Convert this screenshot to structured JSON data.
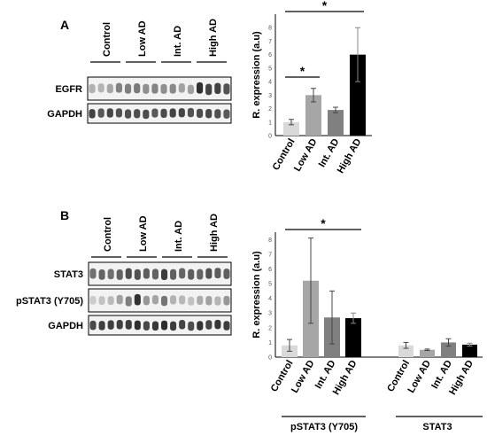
{
  "panels": [
    {
      "letter": "A",
      "groups": [
        "Control",
        "Low AD",
        "Int. AD",
        "High AD"
      ],
      "blot_rows": [
        "EGFR",
        "GAPDH"
      ],
      "chart_data": {
        "type": "bar",
        "categories": [
          "Control",
          "Low AD",
          "Int. AD",
          "High AD"
        ],
        "values": [
          1.0,
          3.0,
          1.9,
          6.0
        ],
        "errors": [
          0.2,
          0.5,
          0.2,
          2.0
        ],
        "ylabel": "R. expression (a.u)",
        "yticks": [
          0,
          1,
          2,
          3,
          4,
          5,
          6,
          7,
          8
        ],
        "ylim": [
          0,
          9
        ],
        "colors": [
          "#d9d9d9",
          "#a6a6a6",
          "#808080",
          "#000000"
        ],
        "significance": [
          {
            "between": [
              "Control",
              "Low AD"
            ],
            "label": "*"
          },
          {
            "between": [
              "Control",
              "High AD"
            ],
            "label": "*"
          }
        ]
      }
    },
    {
      "letter": "B",
      "groups": [
        "Control",
        "Low AD",
        "Int. AD",
        "High AD"
      ],
      "blot_rows": [
        "STAT3",
        "pSTAT3 (Y705)",
        "GAPDH"
      ],
      "chart_data": {
        "type": "bar",
        "categories": [
          "Control",
          "Low AD",
          "Int. AD",
          "High AD"
        ],
        "ylabel": "R. expression (a.u)",
        "yticks": [
          0,
          1,
          2,
          3,
          4,
          5,
          6,
          7,
          8
        ],
        "ylim": [
          0,
          8.5
        ],
        "colors": [
          "#d9d9d9",
          "#a6a6a6",
          "#808080",
          "#000000"
        ],
        "series": [
          {
            "name": "pSTAT3 (Y705)",
            "values": [
              0.8,
              5.2,
              2.7,
              2.65
            ],
            "errors": [
              0.4,
              2.9,
              1.8,
              0.35
            ]
          },
          {
            "name": "STAT3",
            "values": [
              0.8,
              0.5,
              1.0,
              0.85
            ],
            "errors": [
              0.2,
              0.05,
              0.25,
              0.1
            ]
          }
        ],
        "significance": [
          {
            "series": "pSTAT3 (Y705)",
            "between": [
              "Control",
              "High AD"
            ],
            "label": "*"
          }
        ]
      }
    }
  ]
}
